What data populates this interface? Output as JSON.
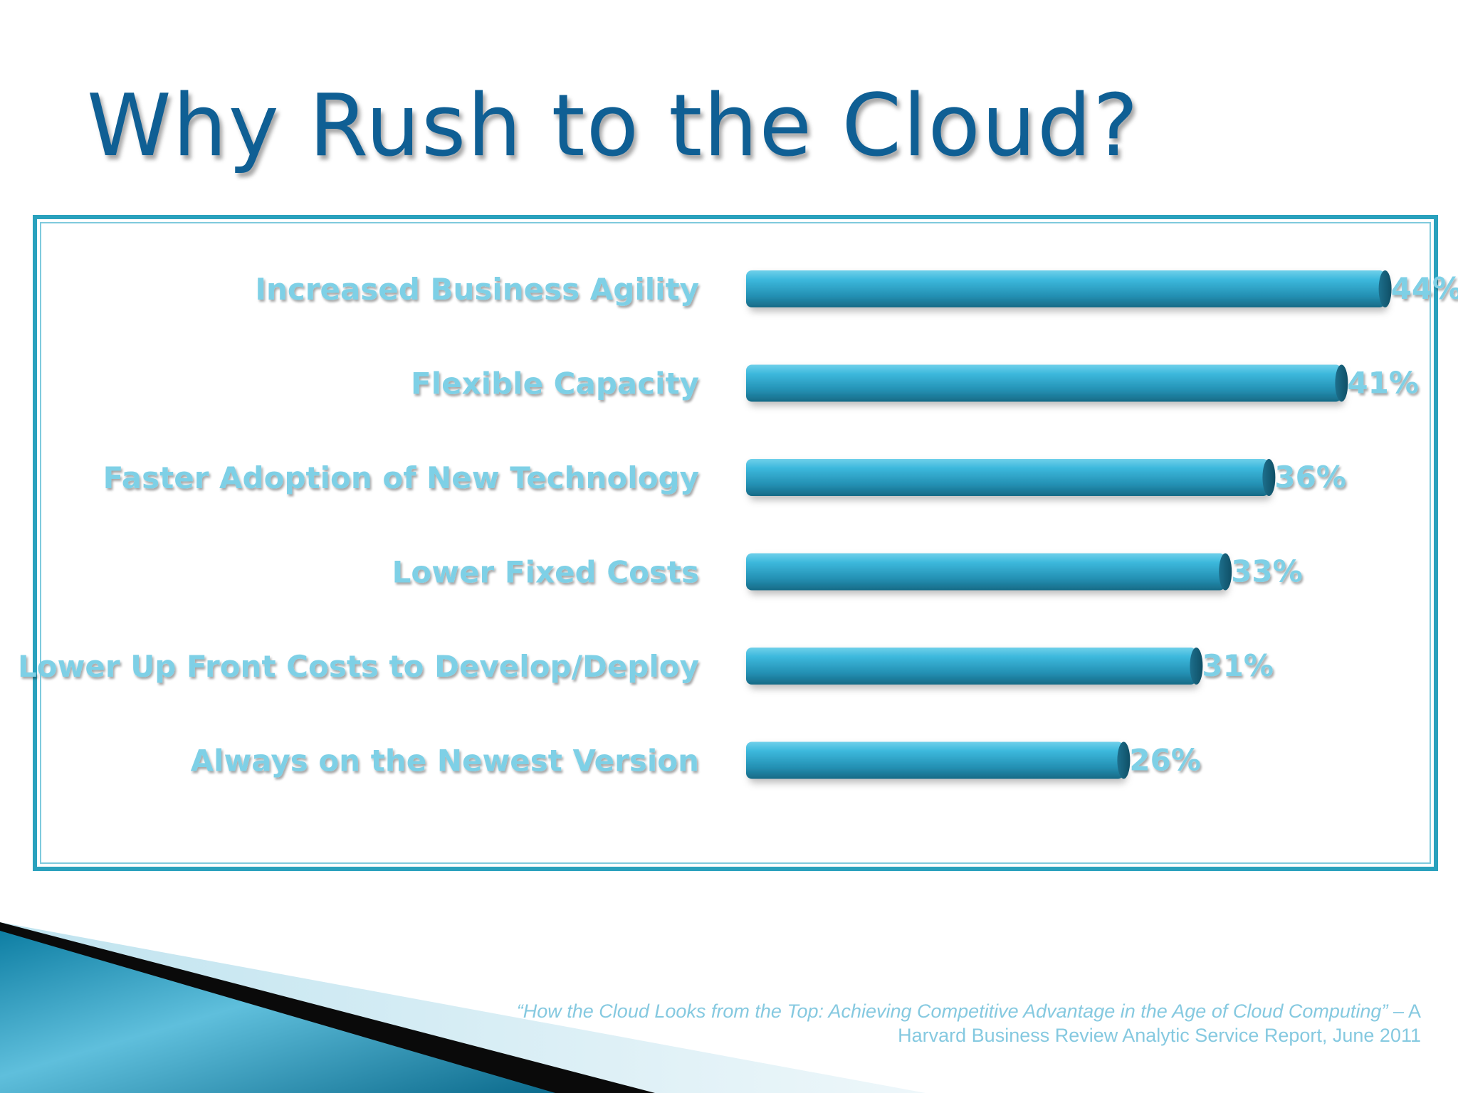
{
  "slide": {
    "title": "Why Rush to the Cloud?",
    "citation_italic": "“How the Cloud Looks from the Top:  Achieving Competitive Advantage in the Age of Cloud Computing”",
    "citation_rest": " – A Harvard Business Review Analytic Service Report, June 2011"
  },
  "colors": {
    "title": "#0f5f94",
    "frame": "#2aa1bd",
    "bar": "#2aa8c8",
    "label": "#7ed0e6"
  },
  "chart_data": {
    "type": "bar",
    "orientation": "horizontal",
    "categories": [
      "Increased Business Agility",
      "Flexible Capacity",
      "Faster Adoption of New Technology",
      "Lower Fixed Costs",
      "Lower Up Front Costs to Develop/Deploy",
      "Always on the Newest Version"
    ],
    "values": [
      44,
      41,
      36,
      33,
      31,
      26
    ],
    "value_labels": [
      "44%",
      "41%",
      "36%",
      "33%",
      "31%",
      "26%"
    ],
    "unit": "%",
    "grid": false,
    "legend": "none",
    "bar_style": "3d-cylinder"
  }
}
